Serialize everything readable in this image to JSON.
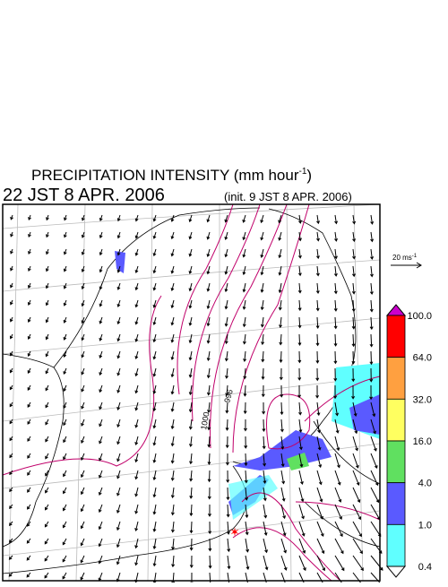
{
  "header": {
    "title": "PRECIPITATION INTENSITY (mm hour",
    "title_exponent": "-1",
    "title_close": ")",
    "valid_time": "22 JST 8 APR. 2006",
    "init_time": "(init. 9 JST 8 APR. 2006)"
  },
  "wind_scale": {
    "label": "20 ms",
    "exponent": "-1"
  },
  "colorbar": {
    "labels": [
      "100.0",
      "64.0",
      "32.0",
      "16.0",
      "4.0",
      "1.0",
      "0.4"
    ],
    "colors": [
      "#cc00cc",
      "#ff0000",
      "#ffa040",
      "#ffff60",
      "#60e060",
      "#5a5aff",
      "#60ffff",
      "#ffffff"
    ]
  },
  "contour_labels": [
    "1000",
    "996"
  ]
}
